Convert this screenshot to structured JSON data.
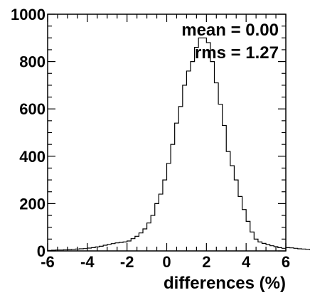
{
  "chart_data": {
    "type": "histogram",
    "title": "",
    "xlabel": "differences (%)",
    "ylabel": "",
    "xlim": [
      -6,
      6
    ],
    "ylim": [
      0,
      1000
    ],
    "x_ticks": [
      "-6",
      "-4",
      "-2",
      "0",
      "2",
      "4",
      "6"
    ],
    "y_ticks": [
      "0",
      "200",
      "400",
      "600",
      "800",
      "1000"
    ],
    "bin_width": 0.2,
    "bin_edges_start": -6,
    "values": [
      2,
      3,
      4,
      4,
      5,
      6,
      7,
      8,
      9,
      10,
      12,
      14,
      17,
      20,
      24,
      28,
      31,
      34,
      36,
      38,
      42,
      52,
      62,
      76,
      93,
      118,
      150,
      200,
      240,
      300,
      370,
      450,
      540,
      610,
      700,
      760,
      800,
      860,
      900,
      900,
      880,
      800,
      710,
      620,
      530,
      420,
      360,
      300,
      230,
      175,
      125,
      80,
      50,
      38,
      32,
      27,
      22,
      18,
      14,
      11,
      14,
      13,
      11,
      9,
      8,
      7,
      6,
      5,
      4,
      3
    ],
    "grid": false,
    "stats_box": {
      "mean_label": "mean = 0.00",
      "rms_label": "rms = 1.27"
    }
  }
}
